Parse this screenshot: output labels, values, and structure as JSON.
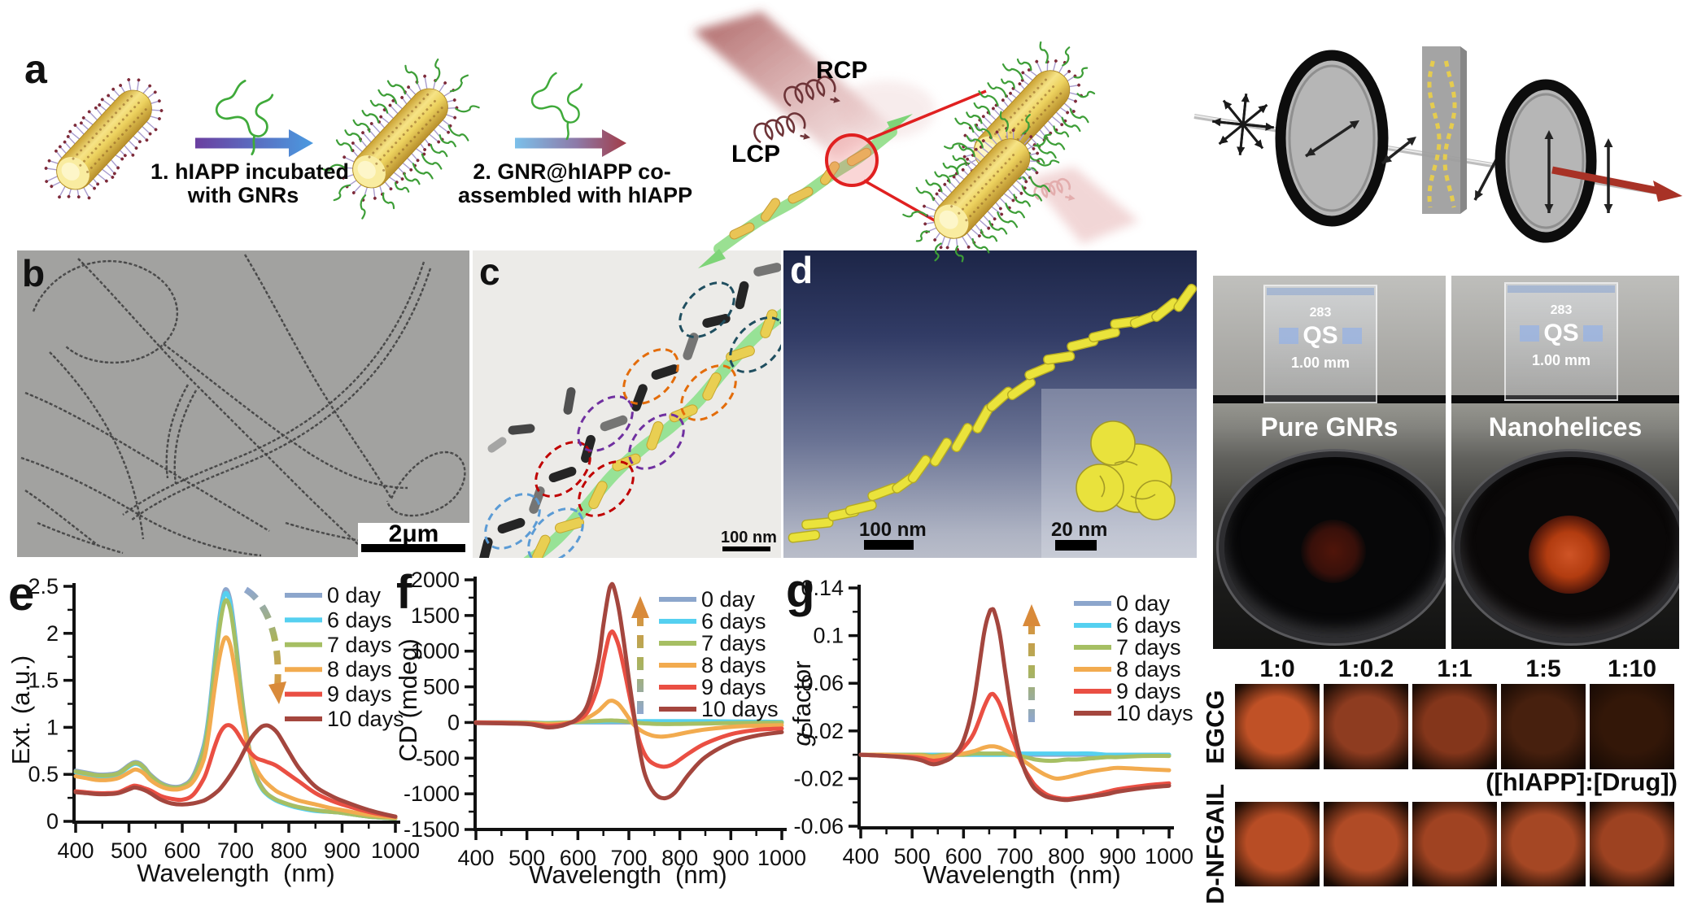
{
  "panel_letters": {
    "a": "a",
    "b": "b",
    "c": "c",
    "d": "d",
    "e": "e",
    "f": "f",
    "g": "g"
  },
  "panel_a": {
    "step1_line1": "1. hIAPP incubated",
    "step1_line2": "with GNRs",
    "step2_line1": "2. GNR@hIAPP co-",
    "step2_line2": "assembled with hIAPP",
    "rcp": "RCP",
    "lcp": "LCP"
  },
  "scale_bars": {
    "b": "2μm",
    "c": "100 nm",
    "d": "100 nm",
    "d_inset": "20 nm"
  },
  "photos": {
    "left": {
      "cuvette_id": "283",
      "cuvette_brand": "QS",
      "cuvette_path": "1.00 mm",
      "label": "Pure GNRs",
      "glow_color": "#50150a"
    },
    "right": {
      "cuvette_id": "283",
      "cuvette_brand": "QS",
      "cuvette_path": "1.00 mm",
      "label": "Nanohelices",
      "glow_color": "#c24312"
    }
  },
  "drug_grid": {
    "ratios": [
      "1:0",
      "1:0.2",
      "1:1",
      "1:5",
      "1:10"
    ],
    "caption": "([hIAPP]:[Drug])",
    "rows": [
      {
        "label": "EGCG",
        "spots": [
          "#c05126",
          "#8e3c20",
          "#84361b",
          "#47200e",
          "#331708"
        ]
      },
      {
        "label": "D-NFGAIL",
        "spots": [
          "#b84d25",
          "#b04b26",
          "#a04322",
          "#a54724",
          "#9d4221"
        ]
      }
    ]
  },
  "legend_labels": [
    "0 day",
    "6 days",
    "7 days",
    "8 days",
    "9 days",
    "10 days"
  ],
  "series_colors": [
    "#8ca6cc",
    "#55d0f0",
    "#a6bf63",
    "#f2ab4f",
    "#ea4f43",
    "#a4463e"
  ],
  "chart_data": [
    {
      "type": "line",
      "id": "e",
      "title": "",
      "xlabel": "Wavelength  (nm)",
      "ylabel": "Ext. (a.u.)",
      "xlim": [
        400,
        1000
      ],
      "ylim": [
        0,
        2.5
      ],
      "x_ticks": [
        "400",
        "500",
        "600",
        "700",
        "800",
        "900",
        "1000"
      ],
      "y_ticks": [
        "2.5",
        "2",
        "1.5",
        "1",
        "0.5",
        "0"
      ],
      "x": [
        400,
        420,
        440,
        460,
        480,
        500,
        510,
        520,
        530,
        540,
        560,
        580,
        600,
        620,
        640,
        650,
        660,
        670,
        680,
        690,
        700,
        710,
        720,
        730,
        740,
        750,
        760,
        770,
        780,
        800,
        820,
        850,
        880,
        900,
        950,
        1000
      ],
      "series": [
        {
          "name": "0 day",
          "values": [
            0.54,
            0.52,
            0.5,
            0.5,
            0.52,
            0.6,
            0.63,
            0.62,
            0.57,
            0.5,
            0.41,
            0.37,
            0.38,
            0.48,
            0.8,
            1.15,
            1.68,
            2.18,
            2.46,
            2.36,
            1.95,
            1.42,
            0.98,
            0.66,
            0.47,
            0.36,
            0.29,
            0.25,
            0.22,
            0.18,
            0.15,
            0.12,
            0.1,
            0.09,
            0.05,
            0.03
          ]
        },
        {
          "name": "6 days",
          "values": [
            0.52,
            0.5,
            0.48,
            0.48,
            0.5,
            0.58,
            0.61,
            0.6,
            0.55,
            0.48,
            0.39,
            0.35,
            0.36,
            0.46,
            0.77,
            1.12,
            1.64,
            2.14,
            2.42,
            2.32,
            1.91,
            1.38,
            0.95,
            0.64,
            0.45,
            0.34,
            0.28,
            0.24,
            0.21,
            0.17,
            0.14,
            0.11,
            0.1,
            0.09,
            0.05,
            0.03
          ]
        },
        {
          "name": "7 days",
          "values": [
            0.53,
            0.51,
            0.49,
            0.49,
            0.51,
            0.59,
            0.62,
            0.61,
            0.56,
            0.49,
            0.4,
            0.36,
            0.37,
            0.46,
            0.75,
            1.08,
            1.58,
            2.06,
            2.34,
            2.26,
            1.88,
            1.38,
            0.96,
            0.65,
            0.46,
            0.35,
            0.29,
            0.25,
            0.22,
            0.18,
            0.15,
            0.12,
            0.1,
            0.09,
            0.05,
            0.03
          ]
        },
        {
          "name": "8 days",
          "values": [
            0.48,
            0.46,
            0.44,
            0.44,
            0.46,
            0.52,
            0.55,
            0.54,
            0.5,
            0.44,
            0.37,
            0.34,
            0.35,
            0.42,
            0.65,
            0.95,
            1.38,
            1.75,
            1.95,
            1.88,
            1.57,
            1.18,
            0.88,
            0.68,
            0.55,
            0.46,
            0.4,
            0.35,
            0.31,
            0.26,
            0.22,
            0.18,
            0.14,
            0.12,
            0.07,
            0.04
          ]
        },
        {
          "name": "9 days",
          "values": [
            0.32,
            0.31,
            0.3,
            0.3,
            0.31,
            0.36,
            0.38,
            0.37,
            0.35,
            0.33,
            0.27,
            0.24,
            0.23,
            0.28,
            0.45,
            0.6,
            0.78,
            0.93,
            1.01,
            1.02,
            0.97,
            0.88,
            0.79,
            0.72,
            0.67,
            0.65,
            0.63,
            0.61,
            0.58,
            0.5,
            0.42,
            0.3,
            0.22,
            0.18,
            0.1,
            0.05
          ]
        },
        {
          "name": "10 days",
          "values": [
            0.31,
            0.3,
            0.29,
            0.29,
            0.3,
            0.34,
            0.36,
            0.35,
            0.33,
            0.3,
            0.23,
            0.19,
            0.18,
            0.19,
            0.22,
            0.25,
            0.29,
            0.34,
            0.41,
            0.49,
            0.58,
            0.68,
            0.79,
            0.89,
            0.96,
            1.01,
            1.02,
            0.99,
            0.93,
            0.74,
            0.56,
            0.37,
            0.27,
            0.22,
            0.12,
            0.05
          ]
        }
      ]
    },
    {
      "type": "line",
      "id": "f",
      "title": "",
      "xlabel": "Wavelength  (nm)",
      "ylabel": "CD (mdeg)",
      "xlim": [
        400,
        1000
      ],
      "ylim": [
        -1500,
        2000
      ],
      "x_ticks": [
        "400",
        "500",
        "600",
        "700",
        "800",
        "900",
        "1000"
      ],
      "y_ticks": [
        "2000",
        "1500",
        "1000",
        "500",
        "0",
        "-500",
        "-1000",
        "-1500"
      ],
      "x": [
        400,
        450,
        500,
        520,
        540,
        560,
        580,
        600,
        620,
        640,
        650,
        660,
        665,
        670,
        680,
        690,
        700,
        710,
        720,
        730,
        740,
        750,
        760,
        770,
        780,
        790,
        800,
        820,
        850,
        900,
        950,
        1000
      ],
      "series": [
        {
          "name": "0 day",
          "values": [
            0,
            0,
            0,
            -4,
            -7,
            -4,
            0,
            0,
            0,
            0,
            0,
            0,
            0,
            0,
            0,
            0,
            0,
            0,
            0,
            0,
            0,
            0,
            0,
            0,
            0,
            0,
            0,
            0,
            0,
            0,
            0,
            0
          ]
        },
        {
          "name": "6 days",
          "values": [
            0,
            0,
            0,
            -4,
            -7,
            -4,
            0,
            4,
            7,
            10,
            12,
            14,
            15,
            15,
            15,
            16,
            16,
            17,
            18,
            18,
            19,
            19,
            20,
            20,
            20,
            20,
            20,
            19,
            18,
            15,
            12,
            10
          ]
        },
        {
          "name": "7 days",
          "values": [
            0,
            0,
            -2,
            -6,
            -10,
            -6,
            0,
            8,
            15,
            22,
            26,
            28,
            29,
            28,
            24,
            18,
            10,
            2,
            -6,
            -12,
            -16,
            -19,
            -21,
            -22,
            -22,
            -21,
            -20,
            -18,
            -14,
            -8,
            -5,
            -3
          ]
        },
        {
          "name": "8 days",
          "values": [
            0,
            -2,
            -8,
            -15,
            -25,
            -20,
            -5,
            25,
            70,
            160,
            230,
            295,
            305,
            300,
            255,
            165,
            60,
            -35,
            -95,
            -140,
            -170,
            -190,
            -198,
            -196,
            -188,
            -175,
            -160,
            -132,
            -98,
            -62,
            -45,
            -38
          ]
        },
        {
          "name": "9 days",
          "values": [
            0,
            -4,
            -14,
            -28,
            -45,
            -38,
            -12,
            35,
            160,
            520,
            860,
            1180,
            1265,
            1255,
            1075,
            770,
            420,
            70,
            -240,
            -430,
            -535,
            -585,
            -612,
            -620,
            -605,
            -570,
            -520,
            -420,
            -295,
            -165,
            -105,
            -85
          ]
        },
        {
          "name": "10 days",
          "values": [
            -8,
            -12,
            -22,
            -42,
            -68,
            -58,
            -18,
            60,
            270,
            850,
            1370,
            1810,
            1925,
            1905,
            1600,
            1140,
            610,
            110,
            -340,
            -690,
            -880,
            -990,
            -1048,
            -1062,
            -1040,
            -985,
            -895,
            -705,
            -485,
            -285,
            -185,
            -135
          ]
        }
      ]
    },
    {
      "type": "line",
      "id": "g",
      "title": "",
      "xlabel": "Wavelength  (nm)",
      "ylabel": "g-factor",
      "ylabel_italic": "g",
      "ylabel_rest": "-factor",
      "xlim": [
        400,
        1000
      ],
      "ylim": [
        -0.06,
        0.14
      ],
      "x_ticks": [
        "400",
        "500",
        "600",
        "700",
        "800",
        "900",
        "1000"
      ],
      "y_ticks": [
        "0.14",
        "0.1",
        "0.06",
        "0.02",
        "-0.02",
        "-0.06"
      ],
      "x": [
        400,
        450,
        500,
        520,
        540,
        560,
        580,
        600,
        620,
        640,
        650,
        655,
        660,
        670,
        680,
        690,
        700,
        710,
        720,
        730,
        740,
        760,
        780,
        800,
        820,
        850,
        880,
        900,
        950,
        1000
      ],
      "series": [
        {
          "name": "0 day",
          "values": [
            0,
            0,
            0,
            0,
            0,
            0,
            0,
            0,
            0,
            0,
            0,
            0,
            0,
            0,
            0,
            0,
            0,
            0,
            0,
            0,
            0,
            0,
            0,
            0,
            0,
            0,
            0,
            0,
            0,
            0
          ]
        },
        {
          "name": "6 days",
          "values": [
            0,
            0,
            0,
            0,
            0,
            0,
            0,
            0,
            0,
            0,
            0,
            0,
            0,
            0,
            0,
            0,
            0.001,
            0.001,
            0.001,
            0.001,
            0.001,
            0.001,
            0.001,
            0.001,
            0.001,
            0.001,
            0,
            0,
            0,
            0
          ]
        },
        {
          "name": "7 days",
          "values": [
            0,
            0,
            0,
            0,
            -0.001,
            0,
            0,
            0,
            0.001,
            0.001,
            0.001,
            0.001,
            0.001,
            0.001,
            0.001,
            0,
            0,
            -0.001,
            -0.002,
            -0.003,
            -0.004,
            -0.005,
            -0.005,
            -0.004,
            -0.004,
            -0.003,
            -0.002,
            -0.002,
            -0.001,
            -0.001
          ]
        },
        {
          "name": "8 days",
          "values": [
            0,
            0,
            -0.001,
            -0.001,
            -0.002,
            -0.001,
            0,
            0.001,
            0.003,
            0.006,
            0.007,
            0.007,
            0.007,
            0.006,
            0.004,
            0.002,
            0,
            -0.003,
            -0.006,
            -0.009,
            -0.012,
            -0.017,
            -0.02,
            -0.019,
            -0.017,
            -0.014,
            -0.012,
            -0.011,
            -0.012,
            -0.013
          ]
        },
        {
          "name": "9 days",
          "values": [
            0,
            -0.001,
            -0.002,
            -0.003,
            -0.005,
            -0.004,
            -0.001,
            0.006,
            0.018,
            0.04,
            0.049,
            0.051,
            0.05,
            0.043,
            0.031,
            0.019,
            0.008,
            -0.004,
            -0.013,
            -0.02,
            -0.026,
            -0.033,
            -0.036,
            -0.037,
            -0.036,
            -0.034,
            -0.031,
            -0.029,
            -0.026,
            -0.024
          ]
        },
        {
          "name": "10 days",
          "values": [
            0,
            -0.001,
            -0.003,
            -0.005,
            -0.008,
            -0.006,
            -0.001,
            0.012,
            0.045,
            0.102,
            0.119,
            0.122,
            0.12,
            0.103,
            0.073,
            0.044,
            0.018,
            -0.001,
            -0.014,
            -0.023,
            -0.029,
            -0.035,
            -0.037,
            -0.038,
            -0.037,
            -0.035,
            -0.033,
            -0.031,
            -0.028,
            -0.026
          ]
        }
      ]
    }
  ]
}
